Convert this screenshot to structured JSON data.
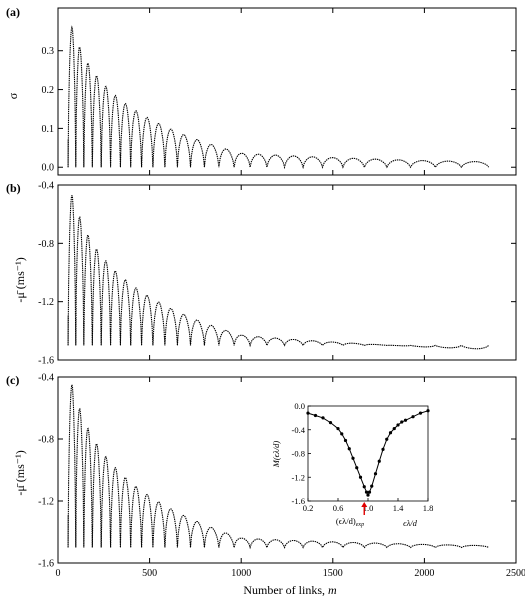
{
  "figure": {
    "xlabel_text": "Number of links, ",
    "xlabel_var": "m",
    "xticks": [
      "0",
      "500",
      "1000",
      "1500",
      "2000",
      "2500"
    ]
  },
  "panels": [
    {
      "label": "(a)",
      "ylabel": "σ",
      "yticks": [
        "0.0",
        "0.1",
        "0.2",
        "0.3"
      ]
    },
    {
      "label": "(b)",
      "ylabel": "-μ̄ (ms⁻¹)",
      "yticks": [
        "-0.4",
        "-0.8",
        "-1.2",
        "-1.6"
      ]
    },
    {
      "label": "(c)",
      "ylabel": "-μ̄ (ms⁻¹)",
      "yticks": [
        "-0.4",
        "-0.8",
        "-1.2",
        "-1.6"
      ]
    }
  ],
  "inset": {
    "ylabel": "M(ϵλ/d)",
    "xlabel": "ϵλ/d",
    "marker_label": "(ϵλ/d)",
    "marker_label_sub": "exp",
    "xticks": [
      "0.2",
      "0.6",
      "1.0",
      "1.4",
      "1.8"
    ],
    "yticks": [
      "0.0",
      "-0.4",
      "-0.8",
      "-1.2",
      "-1.6"
    ],
    "marker_color": "#e00000"
  },
  "chart_data": [
    {
      "type": "line",
      "title": "(a)",
      "xlabel": "Number of links, m",
      "ylabel": "σ",
      "xlim": [
        0,
        2500
      ],
      "ylim": [
        -0.02,
        0.41
      ],
      "series": [
        {
          "x": [
            80,
            1000,
            2000,
            2450
          ],
          "y": [
            0.36,
            0.036,
            0.017,
            0.013
          ]
        }
      ]
    },
    {
      "type": "line",
      "title": "(b)",
      "xlabel": "Number of links, m",
      "ylabel": "-μ̄ (ms⁻¹)",
      "xlim": [
        0,
        2500
      ],
      "ylim": [
        -1.6,
        -0.4
      ],
      "series": [
        {
          "x": [
            80,
            1000,
            2000,
            2450
          ],
          "y": [
            -0.47,
            -1.43,
            -1.51,
            -1.53
          ]
        }
      ]
    },
    {
      "type": "line",
      "title": "(c)",
      "xlabel": "Number of links, m",
      "ylabel": "-μ̄ (ms⁻¹)",
      "xlim": [
        0,
        2500
      ],
      "ylim": [
        -1.6,
        -0.4
      ],
      "series": [
        {
          "x": [
            80,
            1000,
            2000,
            2450
          ],
          "y": [
            -0.45,
            -1.44,
            -1.48,
            -1.49
          ]
        }
      ]
    },
    {
      "type": "line",
      "xlabel": "ϵλ/d",
      "ylabel": "M(ϵλ/d)",
      "xlim": [
        0.2,
        1.8
      ],
      "ylim": [
        -1.6,
        0.0
      ],
      "series": [
        {
          "x": [
            0.2,
            0.3,
            0.4,
            0.5,
            0.6,
            0.65,
            0.7,
            0.75,
            0.8,
            0.85,
            0.9,
            0.95,
            0.98,
            1.0,
            1.02,
            1.05,
            1.1,
            1.15,
            1.2,
            1.25,
            1.3,
            1.35,
            1.4,
            1.45,
            1.5,
            1.6,
            1.7,
            1.8
          ],
          "y": [
            -0.12,
            -0.16,
            -0.2,
            -0.28,
            -0.38,
            -0.47,
            -0.58,
            -0.72,
            -0.88,
            -1.04,
            -1.2,
            -1.36,
            -1.45,
            -1.5,
            -1.45,
            -1.35,
            -1.14,
            -0.93,
            -0.73,
            -0.56,
            -0.45,
            -0.38,
            -0.32,
            -0.27,
            -0.24,
            -0.18,
            -0.12,
            -0.08
          ]
        }
      ]
    }
  ]
}
